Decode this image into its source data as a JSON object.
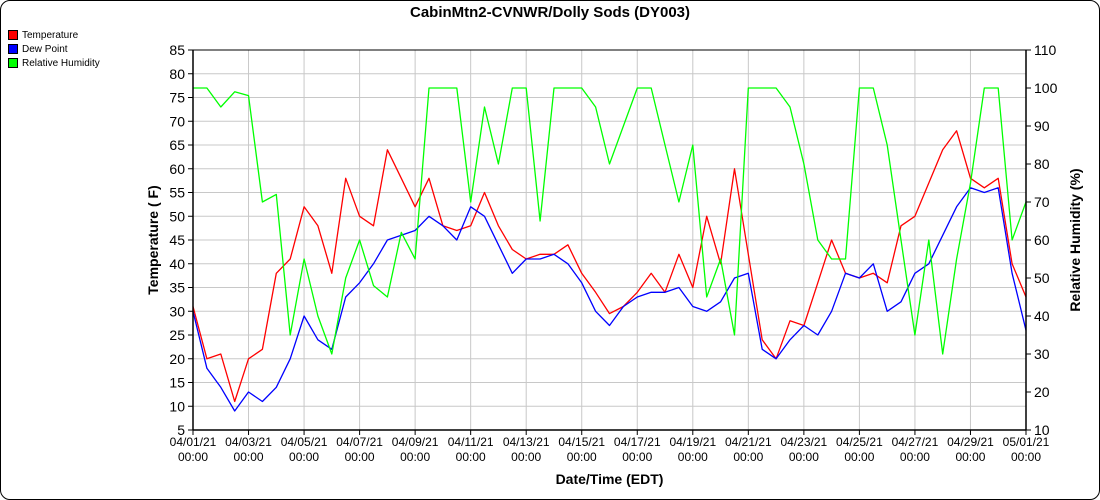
{
  "chart_data": {
    "type": "line",
    "title": "CabinMtn2-CVNWR/Dolly Sods (DY003)",
    "xlabel": "Date/Time (EDT)",
    "ylabel": "Temperature ( F)",
    "y2label": "Relative Humidity (%)",
    "ylim": [
      5,
      85
    ],
    "y2lim": [
      10,
      110
    ],
    "yticks": [
      5,
      10,
      15,
      20,
      25,
      30,
      35,
      40,
      45,
      50,
      55,
      60,
      65,
      70,
      75,
      80,
      85
    ],
    "y2ticks": [
      10,
      20,
      30,
      40,
      50,
      60,
      70,
      80,
      90,
      100,
      110
    ],
    "xlim_days": [
      0,
      30
    ],
    "xticks": [
      [
        "04/01/21",
        "00:00"
      ],
      [
        "04/03/21",
        "00:00"
      ],
      [
        "04/05/21",
        "00:00"
      ],
      [
        "04/07/21",
        "00:00"
      ],
      [
        "04/09/21",
        "00:00"
      ],
      [
        "04/11/21",
        "00:00"
      ],
      [
        "04/13/21",
        "00:00"
      ],
      [
        "04/15/21",
        "00:00"
      ],
      [
        "04/17/21",
        "00:00"
      ],
      [
        "04/19/21",
        "00:00"
      ],
      [
        "04/21/21",
        "00:00"
      ],
      [
        "04/23/21",
        "00:00"
      ],
      [
        "04/25/21",
        "00:00"
      ],
      [
        "04/27/21",
        "00:00"
      ],
      [
        "04/29/21",
        "00:00"
      ],
      [
        "05/01/21",
        "00:00"
      ]
    ],
    "grid": true,
    "legend_position": "top-left",
    "x_step_days": 0.5,
    "series": [
      {
        "name": "Temperature",
        "color": "#ff0000",
        "axis": "left",
        "values": [
          31,
          20,
          21,
          11,
          20,
          22,
          38,
          41,
          52,
          48,
          38,
          58,
          50,
          48,
          64,
          58,
          52,
          58,
          48,
          47,
          48,
          55,
          48,
          43,
          41,
          42,
          42,
          44,
          38,
          34,
          29.5,
          31,
          34,
          38,
          34,
          42,
          35,
          50,
          40,
          60,
          42,
          24,
          20,
          28,
          27,
          36,
          45,
          38,
          37,
          38,
          36,
          48,
          50,
          57,
          64,
          68,
          58,
          56,
          58,
          40,
          33
        ]
      },
      {
        "name": "Dew Point",
        "color": "#0000ff",
        "axis": "left",
        "values": [
          30,
          18,
          14,
          9,
          13,
          11,
          14,
          20,
          29,
          24,
          22,
          33,
          36,
          40,
          45,
          46,
          47,
          50,
          48,
          45,
          52,
          50,
          44,
          38,
          41,
          41,
          42,
          40,
          36,
          30,
          27,
          31,
          33,
          34,
          34,
          35,
          31,
          30,
          32,
          37,
          38,
          22,
          20,
          24,
          27,
          25,
          30,
          38,
          37,
          40,
          30,
          32,
          38,
          40,
          46,
          52,
          56,
          55,
          56,
          38,
          26
        ]
      },
      {
        "name": "Relative Humidity",
        "color": "#00ff00",
        "axis": "right",
        "values": [
          100,
          100,
          95,
          99,
          98,
          70,
          72,
          35,
          55,
          40,
          30,
          50,
          60,
          48,
          45,
          62,
          55,
          100,
          100,
          100,
          70,
          95,
          80,
          100,
          100,
          65,
          100,
          100,
          100,
          95,
          80,
          90,
          100,
          100,
          85,
          70,
          85,
          45,
          55,
          35,
          100,
          100,
          100,
          95,
          80,
          60,
          55,
          55,
          100,
          100,
          85,
          60,
          35,
          60,
          30,
          55,
          75,
          100,
          100,
          60,
          70
        ]
      }
    ]
  }
}
